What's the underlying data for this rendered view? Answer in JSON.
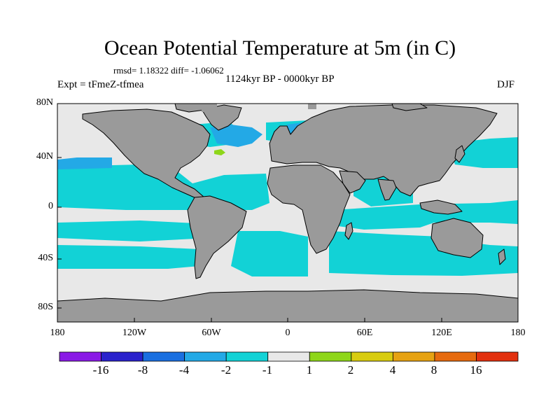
{
  "header": {
    "title": "Ocean Potential Temperature at 5m (in C)",
    "stats": "rmsd= 1.18322 diff= -1.06062",
    "period": "1124kyr BP - 0000kyr BP",
    "experiment": "Expt = tFmeZ-tfmea",
    "season": "DJF"
  },
  "axes": {
    "lat_labels": [
      "80N",
      "40N",
      "0",
      "40S",
      "80S"
    ],
    "lon_labels": [
      "180",
      "120W",
      "60W",
      "0",
      "60E",
      "120E",
      "180"
    ]
  },
  "colorbar": {
    "labels": [
      "-16",
      "-8",
      "-4",
      "-2",
      "-1",
      "1",
      "2",
      "4",
      "8",
      "16"
    ],
    "colors": [
      "#8a1ae6",
      "#2a22cc",
      "#1a6fe0",
      "#23a9e6",
      "#12d2d6",
      "#e8e8e8",
      "#8ed61a",
      "#d8cc10",
      "#e6a212",
      "#e66a0e",
      "#e2300e"
    ]
  },
  "map_colors": {
    "land": "#9a9a9a",
    "ocean_neutral": "#e8e8e8",
    "ocean_cool": "#12d2d6",
    "ocean_cooler": "#23a9e6",
    "ocean_warm": "#8ed61a"
  }
}
